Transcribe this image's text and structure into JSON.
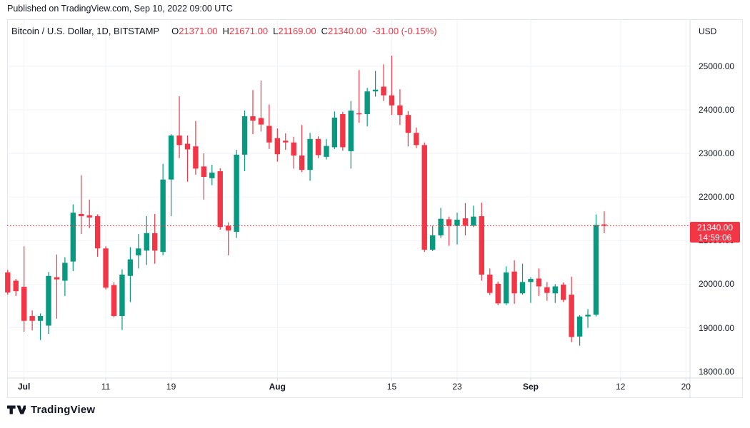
{
  "published_bar": {
    "text": "Published on TradingView.com, Sep 10, 2022 09:00 UTC"
  },
  "legend": {
    "symbol_title": "Bitcoin / U.S. Dollar, 1D, BITSTAMP",
    "o_label": "O",
    "o_value": "21371.00",
    "h_label": "H",
    "h_value": "21671.00",
    "l_label": "L",
    "l_value": "21169.00",
    "c_label": "C",
    "c_value": "21340.00",
    "change_text": "-31.00 (-0.15%)"
  },
  "price_axis": {
    "currency": "USD",
    "ticks": [
      {
        "label": "25000.00",
        "value": 25000
      },
      {
        "label": "24000.00",
        "value": 24000
      },
      {
        "label": "23000.00",
        "value": 23000
      },
      {
        "label": "22000.00",
        "value": 22000
      },
      {
        "label": "21000.00",
        "value": 21000
      },
      {
        "label": "20000.00",
        "value": 20000
      },
      {
        "label": "19000.00",
        "value": 19000
      },
      {
        "label": "18000.00",
        "value": 18000
      }
    ],
    "current": {
      "label": "21340.00",
      "countdown": "14:59:06",
      "value": 21340
    }
  },
  "time_axis": {
    "ticks": [
      {
        "label": "Jul",
        "bar_index": 2,
        "bold": true
      },
      {
        "label": "11",
        "bar_index": 12,
        "bold": false
      },
      {
        "label": "19",
        "bar_index": 20,
        "bold": false
      },
      {
        "label": "Aug",
        "bar_index": 33,
        "bold": true
      },
      {
        "label": "15",
        "bar_index": 47,
        "bold": false
      },
      {
        "label": "23",
        "bar_index": 55,
        "bold": false
      },
      {
        "label": "Sep",
        "bar_index": 64,
        "bold": true
      },
      {
        "label": "12",
        "bar_index": 75,
        "bold": false
      },
      {
        "label": "20",
        "bar_index": 83,
        "bold": false
      }
    ]
  },
  "footer": {
    "brand": "TradingView"
  },
  "colors": {
    "up": "#089981",
    "down": "#F23645",
    "accent": "#F23645",
    "text": "#131722",
    "grid": "#F0F2F6",
    "axis_line": "#D8DCE3",
    "label_bg": "#F23645",
    "label_text": "#FFFFFF"
  },
  "chart_data": {
    "type": "candlestick",
    "symbol": "Bitcoin / U.S. Dollar",
    "interval": "1D",
    "exchange": "BITSTAMP",
    "currency": "USD",
    "title": "Bitcoin / U.S. Dollar, 1D, BITSTAMP",
    "y_range_visible": [
      18000,
      26000
    ],
    "grid": true,
    "current_bar": {
      "open": 21371.0,
      "high": 21671.0,
      "low": 21169.0,
      "close": 21340.0,
      "change": -31.0,
      "change_pct": -0.15
    },
    "current_price": 21340.0,
    "candle_fields": [
      "date",
      "open",
      "high",
      "low",
      "close"
    ],
    "candles": [
      [
        "Jun 29",
        20270,
        20330,
        19760,
        19810
      ],
      [
        "Jun 30",
        20080,
        20120,
        19730,
        19840
      ],
      [
        "Jul 1",
        19940,
        20870,
        18910,
        19160
      ],
      [
        "Jul 2",
        19270,
        19400,
        18940,
        19160
      ],
      [
        "Jul 3",
        19160,
        19330,
        18720,
        19270
      ],
      [
        "Jul 4",
        19050,
        20280,
        18860,
        20190
      ],
      [
        "Jul 5",
        20160,
        20680,
        19210,
        20110
      ],
      [
        "Jul 6",
        20080,
        20620,
        19730,
        20490
      ],
      [
        "Jul 7",
        20520,
        21830,
        20300,
        21640
      ],
      [
        "Jul 8",
        21610,
        22500,
        21150,
        21560
      ],
      [
        "Jul 9",
        21580,
        21940,
        21280,
        21530
      ],
      [
        "Jul 10",
        21560,
        21600,
        20630,
        20820
      ],
      [
        "Jul 11",
        20820,
        20870,
        19880,
        19920
      ],
      [
        "Jul 12",
        19980,
        20050,
        19240,
        19270
      ],
      [
        "Jul 13",
        19270,
        20340,
        18950,
        20220
      ],
      [
        "Jul 14",
        20190,
        20850,
        19590,
        20570
      ],
      [
        "Jul 15",
        20660,
        21150,
        20360,
        20820
      ],
      [
        "Jul 16",
        20770,
        21560,
        20440,
        21170
      ],
      [
        "Jul 17",
        21170,
        21610,
        20470,
        20770
      ],
      [
        "Jul 18",
        20740,
        22760,
        20660,
        22400
      ],
      [
        "Jul 19",
        22400,
        23440,
        21560,
        23410
      ],
      [
        "Jul 20",
        23410,
        24310,
        22890,
        23190
      ],
      [
        "Jul 21",
        23220,
        23410,
        22350,
        23090
      ],
      [
        "Jul 22",
        23160,
        23740,
        22510,
        22650
      ],
      [
        "Jul 23",
        22700,
        23000,
        21940,
        22460
      ],
      [
        "Jul 24",
        22430,
        22740,
        22270,
        22560
      ],
      [
        "Jul 25",
        22590,
        22660,
        21250,
        21310
      ],
      [
        "Jul 26",
        21340,
        21420,
        20660,
        21230
      ],
      [
        "Jul 27",
        21200,
        23080,
        21060,
        22970
      ],
      [
        "Jul 28",
        22970,
        23980,
        22590,
        23850
      ],
      [
        "Jul 29",
        23850,
        24450,
        23440,
        23750
      ],
      [
        "Jul 30",
        23810,
        24670,
        23500,
        23660
      ],
      [
        "Jul 31",
        23630,
        24120,
        23100,
        23250
      ],
      [
        "Aug 1",
        23350,
        23570,
        22810,
        22980
      ],
      [
        "Aug 2",
        23290,
        23460,
        23080,
        23250
      ],
      [
        "Aug 3",
        23250,
        23380,
        22650,
        22950
      ],
      [
        "Aug 4",
        22950,
        23650,
        22570,
        22620
      ],
      [
        "Aug 5",
        22620,
        23470,
        22370,
        23330
      ],
      [
        "Aug 6",
        23330,
        23390,
        22890,
        22960
      ],
      [
        "Aug 7",
        22920,
        23330,
        22860,
        23170
      ],
      [
        "Aug 8",
        23140,
        23960,
        23100,
        23820
      ],
      [
        "Aug 9",
        23900,
        23950,
        23060,
        23140
      ],
      [
        "Aug 10",
        23050,
        24200,
        22650,
        23980
      ],
      [
        "Aug 11",
        23920,
        24910,
        23700,
        23900
      ],
      [
        "Aug 12",
        23900,
        24500,
        23620,
        24420
      ],
      [
        "Aug 13",
        24420,
        24890,
        24300,
        24460
      ],
      [
        "Aug 14",
        24530,
        25040,
        24200,
        24330
      ],
      [
        "Aug 15",
        24330,
        25240,
        23880,
        24100
      ],
      [
        "Aug 16",
        24100,
        24470,
        23650,
        23880
      ],
      [
        "Aug 17",
        23880,
        23970,
        23160,
        23470
      ],
      [
        "Aug 18",
        23470,
        23590,
        23120,
        23190
      ],
      [
        "Aug 19",
        23190,
        23250,
        20740,
        20790
      ],
      [
        "Aug 20",
        20790,
        21340,
        20760,
        21120
      ],
      [
        "Aug 21",
        21120,
        21750,
        21060,
        21500
      ],
      [
        "Aug 22",
        21490,
        21550,
        20880,
        21340
      ],
      [
        "Aug 23",
        21340,
        21640,
        20910,
        21480
      ],
      [
        "Aug 24",
        21510,
        21860,
        21120,
        21340
      ],
      [
        "Aug 25",
        21340,
        21800,
        21310,
        21550
      ],
      [
        "Aug 26",
        21560,
        21870,
        20080,
        20220
      ],
      [
        "Aug 27",
        20220,
        20360,
        19750,
        19800
      ],
      [
        "Aug 28",
        20010,
        20060,
        19520,
        19560
      ],
      [
        "Aug 29",
        19560,
        20410,
        19520,
        20270
      ],
      [
        "Aug 30",
        20290,
        20550,
        19550,
        19790
      ],
      [
        "Aug 31",
        19790,
        20470,
        19760,
        20050
      ],
      [
        "Sep 1",
        20050,
        20160,
        19570,
        20120
      ],
      [
        "Sep 2",
        20130,
        20360,
        19730,
        19950
      ],
      [
        "Sep 3",
        19930,
        20050,
        19620,
        19800
      ],
      [
        "Sep 4",
        19790,
        20000,
        19570,
        19950
      ],
      [
        "Sep 5",
        19990,
        20040,
        19590,
        19640
      ],
      [
        "Sep 6",
        19760,
        20170,
        18670,
        18790
      ],
      [
        "Sep 7",
        18800,
        19290,
        18590,
        19260
      ],
      [
        "Sep 8",
        19260,
        19430,
        19000,
        19300
      ],
      [
        "Sep 9",
        19300,
        21600,
        19260,
        21360
      ],
      [
        "Sep 10",
        21371,
        21671,
        21169,
        21340
      ]
    ]
  }
}
